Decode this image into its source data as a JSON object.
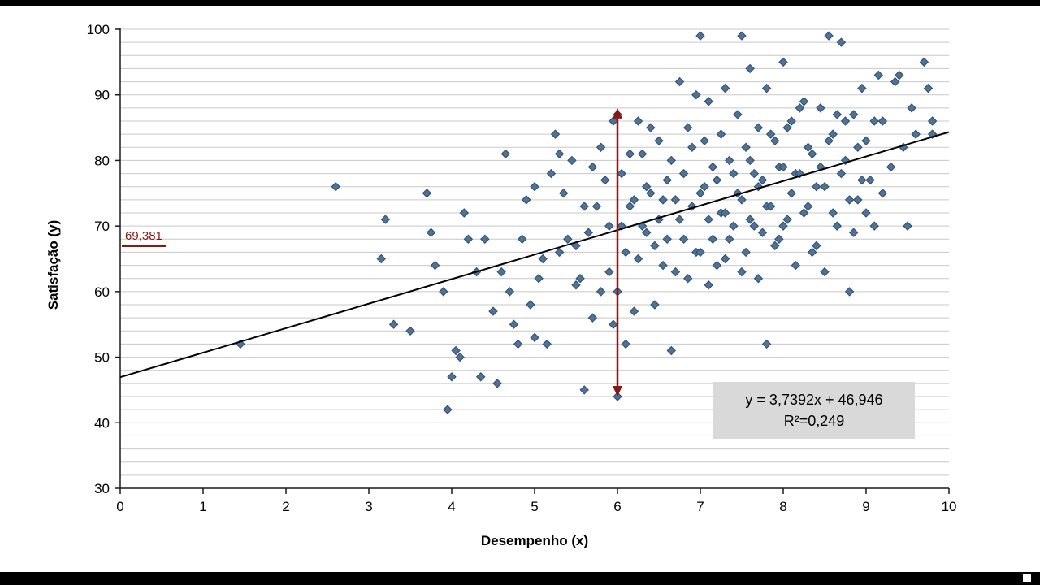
{
  "chart_data": {
    "type": "scatter",
    "title": "",
    "xlabel": "Desempenho (x)",
    "ylabel": "Satisfação (y)",
    "xlim": [
      0,
      10
    ],
    "ylim": [
      30,
      100
    ],
    "x_ticks": [
      0,
      1,
      2,
      3,
      4,
      5,
      6,
      7,
      8,
      9,
      10
    ],
    "y_ticks": [
      30,
      40,
      50,
      60,
      70,
      80,
      90,
      100
    ],
    "minor_grid_step_y": 2,
    "grid": "horizontal-minor",
    "legend": "none",
    "trendline": {
      "slope": 3.7392,
      "intercept": 46.946,
      "r2": 0.249,
      "label_line1": "y = 3,7392x + 46,946",
      "label_line2": "R²=0,249"
    },
    "annotation": {
      "value_label": "69,381",
      "value": 69.381,
      "arrow_x": 6,
      "arrow_y_top": 88,
      "arrow_y_bottom": 44
    },
    "colors": {
      "marker_fill": "#4F7296",
      "marker_stroke": "#2E4D6B",
      "trendline": "#000000",
      "arrow": "#8B1712",
      "annotation_text": "#8B1712",
      "equation_bg": "#D9D9D9",
      "equation_text": "#000000",
      "grid": "#C9C9C9",
      "axis": "#1A1A1A"
    },
    "points": [
      [
        1.45,
        52
      ],
      [
        2.6,
        76
      ],
      [
        3.15,
        65
      ],
      [
        3.2,
        71
      ],
      [
        3.3,
        55
      ],
      [
        3.5,
        54
      ],
      [
        3.7,
        75
      ],
      [
        3.75,
        69
      ],
      [
        3.8,
        64
      ],
      [
        3.9,
        60
      ],
      [
        3.95,
        42
      ],
      [
        4.0,
        47
      ],
      [
        4.05,
        51
      ],
      [
        4.1,
        50
      ],
      [
        4.15,
        72
      ],
      [
        4.2,
        68
      ],
      [
        4.3,
        63
      ],
      [
        4.35,
        47
      ],
      [
        4.4,
        68
      ],
      [
        4.5,
        57
      ],
      [
        4.55,
        46
      ],
      [
        4.6,
        63
      ],
      [
        4.65,
        81
      ],
      [
        4.7,
        60
      ],
      [
        4.75,
        55
      ],
      [
        4.8,
        52
      ],
      [
        4.85,
        68
      ],
      [
        4.9,
        74
      ],
      [
        4.95,
        58
      ],
      [
        5.0,
        53
      ],
      [
        5.0,
        76
      ],
      [
        5.05,
        62
      ],
      [
        5.1,
        65
      ],
      [
        5.15,
        52
      ],
      [
        5.2,
        78
      ],
      [
        5.25,
        84
      ],
      [
        5.3,
        81
      ],
      [
        5.3,
        66
      ],
      [
        5.35,
        75
      ],
      [
        5.4,
        68
      ],
      [
        5.45,
        80
      ],
      [
        5.5,
        67
      ],
      [
        5.5,
        61
      ],
      [
        5.55,
        62
      ],
      [
        5.6,
        45
      ],
      [
        5.6,
        73
      ],
      [
        5.65,
        69
      ],
      [
        5.7,
        79
      ],
      [
        5.7,
        56
      ],
      [
        5.75,
        73
      ],
      [
        5.8,
        60
      ],
      [
        5.8,
        82
      ],
      [
        5.85,
        77
      ],
      [
        5.9,
        63
      ],
      [
        5.9,
        70
      ],
      [
        5.95,
        55
      ],
      [
        5.95,
        86
      ],
      [
        6.0,
        44
      ],
      [
        6.0,
        87
      ],
      [
        6.0,
        60
      ],
      [
        6.05,
        70
      ],
      [
        6.05,
        78
      ],
      [
        6.1,
        52
      ],
      [
        6.1,
        66
      ],
      [
        6.15,
        73
      ],
      [
        6.15,
        81
      ],
      [
        6.2,
        74
      ],
      [
        6.2,
        57
      ],
      [
        6.25,
        86
      ],
      [
        6.25,
        65
      ],
      [
        6.3,
        81
      ],
      [
        6.3,
        70
      ],
      [
        6.35,
        69
      ],
      [
        6.35,
        76
      ],
      [
        6.4,
        75
      ],
      [
        6.4,
        85
      ],
      [
        6.45,
        58
      ],
      [
        6.45,
        67
      ],
      [
        6.5,
        71
      ],
      [
        6.5,
        83
      ],
      [
        6.55,
        64
      ],
      [
        6.55,
        74
      ],
      [
        6.6,
        77
      ],
      [
        6.6,
        68
      ],
      [
        6.65,
        51
      ],
      [
        6.65,
        80
      ],
      [
        6.7,
        74
      ],
      [
        6.7,
        63
      ],
      [
        6.75,
        92
      ],
      [
        6.75,
        71
      ],
      [
        6.8,
        68
      ],
      [
        6.8,
        78
      ],
      [
        6.85,
        62
      ],
      [
        6.85,
        85
      ],
      [
        6.9,
        82
      ],
      [
        6.9,
        73
      ],
      [
        6.95,
        66
      ],
      [
        6.95,
        90
      ],
      [
        7.0,
        99
      ],
      [
        7.0,
        66
      ],
      [
        7.0,
        75
      ],
      [
        7.05,
        76
      ],
      [
        7.05,
        83
      ],
      [
        7.1,
        71
      ],
      [
        7.1,
        89
      ],
      [
        7.1,
        61
      ],
      [
        7.15,
        79
      ],
      [
        7.15,
        68
      ],
      [
        7.2,
        64
      ],
      [
        7.2,
        77
      ],
      [
        7.25,
        84
      ],
      [
        7.25,
        72
      ],
      [
        7.3,
        72
      ],
      [
        7.3,
        91
      ],
      [
        7.3,
        65
      ],
      [
        7.35,
        68
      ],
      [
        7.35,
        80
      ],
      [
        7.4,
        78
      ],
      [
        7.4,
        70
      ],
      [
        7.45,
        87
      ],
      [
        7.45,
        75
      ],
      [
        7.5,
        99
      ],
      [
        7.5,
        74
      ],
      [
        7.5,
        63
      ],
      [
        7.55,
        66
      ],
      [
        7.55,
        82
      ],
      [
        7.6,
        94
      ],
      [
        7.6,
        80
      ],
      [
        7.6,
        71
      ],
      [
        7.65,
        70
      ],
      [
        7.65,
        78
      ],
      [
        7.7,
        85
      ],
      [
        7.7,
        62
      ],
      [
        7.7,
        76
      ],
      [
        7.75,
        77
      ],
      [
        7.75,
        69
      ],
      [
        7.8,
        52
      ],
      [
        7.8,
        91
      ],
      [
        7.8,
        73
      ],
      [
        7.85,
        73
      ],
      [
        7.85,
        84
      ],
      [
        7.9,
        83
      ],
      [
        7.9,
        67
      ],
      [
        7.95,
        68
      ],
      [
        7.95,
        79
      ],
      [
        8.0,
        79
      ],
      [
        8.0,
        95
      ],
      [
        8.0,
        70
      ],
      [
        8.05,
        71
      ],
      [
        8.05,
        85
      ],
      [
        8.1,
        86
      ],
      [
        8.1,
        75
      ],
      [
        8.15,
        64
      ],
      [
        8.15,
        78
      ],
      [
        8.2,
        78
      ],
      [
        8.2,
        88
      ],
      [
        8.25,
        89
      ],
      [
        8.25,
        72
      ],
      [
        8.3,
        73
      ],
      [
        8.3,
        82
      ],
      [
        8.35,
        81
      ],
      [
        8.35,
        66
      ],
      [
        8.4,
        67
      ],
      [
        8.4,
        76
      ],
      [
        8.45,
        88
      ],
      [
        8.45,
        79
      ],
      [
        8.5,
        76
      ],
      [
        8.5,
        63
      ],
      [
        8.55,
        99
      ],
      [
        8.55,
        83
      ],
      [
        8.6,
        84
      ],
      [
        8.6,
        72
      ],
      [
        8.65,
        70
      ],
      [
        8.65,
        87
      ],
      [
        8.7,
        98
      ],
      [
        8.7,
        78
      ],
      [
        8.75,
        80
      ],
      [
        8.75,
        86
      ],
      [
        8.8,
        60
      ],
      [
        8.8,
        74
      ],
      [
        8.85,
        87
      ],
      [
        8.85,
        69
      ],
      [
        8.9,
        74
      ],
      [
        8.9,
        82
      ],
      [
        8.95,
        91
      ],
      [
        8.95,
        77
      ],
      [
        9.0,
        83
      ],
      [
        9.0,
        72
      ],
      [
        9.05,
        77
      ],
      [
        9.1,
        70
      ],
      [
        9.1,
        86
      ],
      [
        9.15,
        93
      ],
      [
        9.2,
        86
      ],
      [
        9.2,
        75
      ],
      [
        9.3,
        79
      ],
      [
        9.35,
        92
      ],
      [
        9.4,
        93
      ],
      [
        9.45,
        82
      ],
      [
        9.5,
        70
      ],
      [
        9.55,
        88
      ],
      [
        9.6,
        84
      ],
      [
        9.7,
        95
      ],
      [
        9.75,
        91
      ],
      [
        9.8,
        86
      ],
      [
        9.8,
        84
      ]
    ]
  }
}
